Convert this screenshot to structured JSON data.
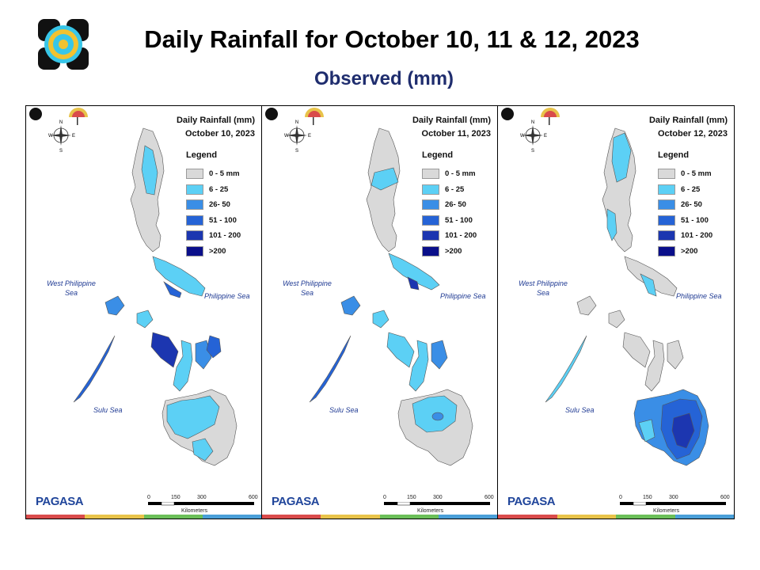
{
  "title": "Daily Rainfall for October 10, 11 & 12, 2023",
  "subtitle": "Observed (mm)",
  "legend": {
    "title": "Legend",
    "items": [
      {
        "label": "0 - 5 mm",
        "color": "#d9d9d9"
      },
      {
        "label": "6 - 25",
        "color": "#5cd0f5"
      },
      {
        "label": "26- 50",
        "color": "#3a8ee6"
      },
      {
        "label": "51 - 100",
        "color": "#2563d6"
      },
      {
        "label": "101 - 200",
        "color": "#1c36b0"
      },
      {
        "label": ">200",
        "color": "#0a0f8a"
      }
    ]
  },
  "panels": [
    {
      "header": "Daily Rainfall (mm)",
      "date": "October 10, 2023",
      "dominant_category": "6 - 25"
    },
    {
      "header": "Daily Rainfall (mm)",
      "date": "October 11, 2023",
      "dominant_category": "6 - 25"
    },
    {
      "header": "Daily Rainfall (mm)",
      "date": "October 12, 2023",
      "dominant_category": "0 - 5 mm"
    }
  ],
  "seas": {
    "west": "West Philippine Sea",
    "philippine": "Philippine Sea",
    "sulu": "Sulu Sea"
  },
  "compass": {
    "n": "N",
    "e": "E",
    "s": "S",
    "w": "W"
  },
  "scale": {
    "ticks": [
      "0",
      "150",
      "300",
      "600"
    ],
    "unit": "Kilometers"
  },
  "brand": {
    "name": "PAGASA"
  },
  "colors": {
    "title": "#000000",
    "subtitle": "#1f2d6e",
    "sea_label": "#1f3a93",
    "strip": [
      "#d94b4b",
      "#e8c34a",
      "#6bbf59",
      "#4a9fd8"
    ]
  }
}
